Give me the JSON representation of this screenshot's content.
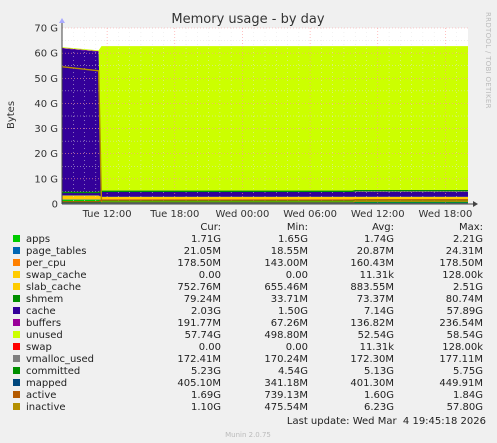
{
  "chart_data": {
    "type": "area",
    "title": "Memory usage - by day",
    "ylabel": "Bytes",
    "xlabel": "",
    "ylim": [
      0,
      70
    ],
    "yticks": [
      "0",
      "10 G",
      "20 G",
      "30 G",
      "40 G",
      "50 G",
      "60 G",
      "70 G"
    ],
    "xticks": [
      {
        "t": 4,
        "label": "Tue 12:00"
      },
      {
        "t": 10,
        "label": "Tue 18:00"
      },
      {
        "t": 16,
        "label": "Wed 00:00"
      },
      {
        "t": 22,
        "label": "Wed 06:00"
      },
      {
        "t": 28,
        "label": "Wed 12:00"
      },
      {
        "t": 34,
        "label": "Wed 18:00"
      }
    ],
    "x_range": [
      0,
      36
    ],
    "grid": true,
    "legend_columns": [
      "Cur:",
      "Min:",
      "Avg:",
      "Max:"
    ],
    "series": [
      {
        "name": "apps",
        "color": "#00cc00",
        "cur": "1.71G",
        "min": "1.65G",
        "avg": "1.74G",
        "max": "2.21G"
      },
      {
        "name": "page_tables",
        "color": "#0066b3",
        "cur": "21.05M",
        "min": "18.55M",
        "avg": "20.87M",
        "max": "24.31M"
      },
      {
        "name": "per_cpu",
        "color": "#ff8000",
        "cur": "178.50M",
        "min": "143.00M",
        "avg": "160.43M",
        "max": "178.50M"
      },
      {
        "name": "swap_cache",
        "color": "#ffcc00",
        "cur": "0.00",
        "min": "0.00",
        "avg": "11.31k",
        "max": "128.00k"
      },
      {
        "name": "slab_cache",
        "color": "#ffcc00",
        "cur": "752.76M",
        "min": "655.46M",
        "avg": "883.55M",
        "max": "2.51G"
      },
      {
        "name": "shmem",
        "color": "#008f00",
        "cur": "79.24M",
        "min": "33.71M",
        "avg": "73.37M",
        "max": "80.74M"
      },
      {
        "name": "cache",
        "color": "#330099",
        "cur": "2.03G",
        "min": "1.50G",
        "avg": "7.14G",
        "max": "57.89G"
      },
      {
        "name": "buffers",
        "color": "#990099",
        "cur": "191.77M",
        "min": "67.26M",
        "avg": "136.82M",
        "max": "236.54M"
      },
      {
        "name": "unused",
        "color": "#ccff00",
        "cur": "57.74G",
        "min": "498.80M",
        "avg": "52.54G",
        "max": "58.54G"
      },
      {
        "name": "swap",
        "color": "#ff0000",
        "cur": "0.00",
        "min": "0.00",
        "avg": "11.31k",
        "max": "128.00k"
      },
      {
        "name": "vmalloc_used",
        "color": "#808080",
        "cur": "172.41M",
        "min": "170.24M",
        "avg": "172.30M",
        "max": "177.11M"
      },
      {
        "name": "committed",
        "color": "#008f00",
        "cur": "5.23G",
        "min": "4.54G",
        "avg": "5.13G",
        "max": "5.75G"
      },
      {
        "name": "mapped",
        "color": "#00487d",
        "cur": "405.10M",
        "min": "341.18M",
        "avg": "401.30M",
        "max": "449.91M"
      },
      {
        "name": "active",
        "color": "#b35a00",
        "cur": "1.69G",
        "min": "739.13M",
        "avg": "1.60G",
        "max": "1.84G"
      },
      {
        "name": "inactive",
        "color": "#b38f00",
        "cur": "1.10G",
        "min": "475.54M",
        "avg": "6.23G",
        "max": "57.80G"
      }
    ],
    "last_update": "Last update: Wed Mar  4 19:45:18 2026",
    "side_text": "RRDTOOL / TOBI OETIKER",
    "footer": "Munin 2.0.75"
  }
}
